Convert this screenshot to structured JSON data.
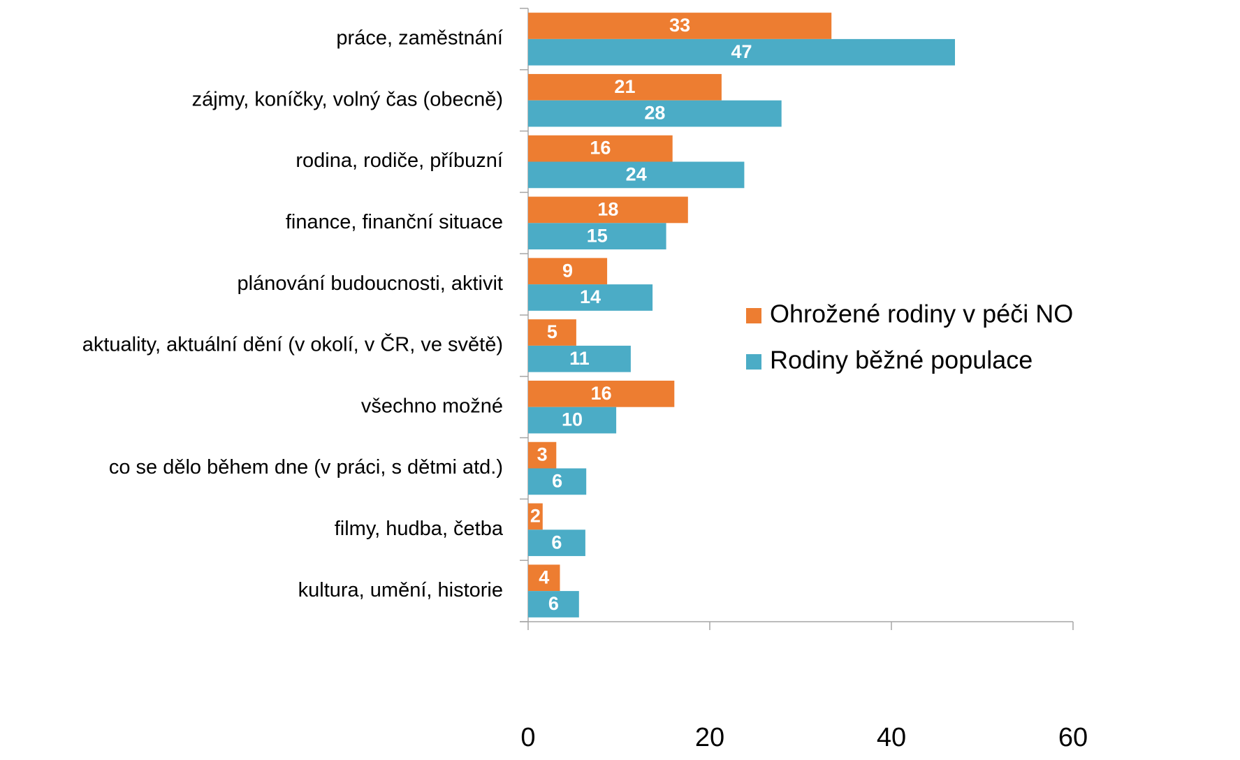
{
  "chart_data": {
    "type": "barh",
    "categories": [
      "práce, zaměstnání",
      "zájmy, koníčky, volný čas (obecně)",
      "rodina, rodiče, příbuzní",
      "finance, finanční situace",
      "plánování budoucnosti, aktivit",
      "aktuality, aktuální dění (v okolí, v ČR, ve světě)",
      "všechno možné",
      "co se dělo během dne (v práci, s dětmi atd.)",
      "filmy, hudba, četba",
      "kultura, umění, historie"
    ],
    "series": [
      {
        "name": "Ohrožené rodiny v péči NO",
        "color": "#ED7D31",
        "values": [
          33.4,
          21.3,
          15.9,
          17.6,
          8.7,
          5.3,
          16.1,
          3.1,
          1.6,
          3.5
        ],
        "value_labels": [
          "33",
          "21",
          "16",
          "18",
          "9",
          "5",
          "16",
          "3",
          "2",
          "4"
        ]
      },
      {
        "name": "Rodiny běžné populace",
        "color": "#4BACC6",
        "values": [
          47.0,
          27.9,
          23.8,
          15.2,
          13.7,
          11.3,
          9.7,
          6.4,
          6.3,
          5.6
        ],
        "value_labels": [
          "47",
          "28",
          "24",
          "15",
          "14",
          "11",
          "10",
          "6",
          "6",
          "6"
        ]
      }
    ],
    "xlim": [
      0,
      60
    ],
    "xticks": [
      0,
      20,
      40,
      60
    ],
    "legend": "right"
  }
}
